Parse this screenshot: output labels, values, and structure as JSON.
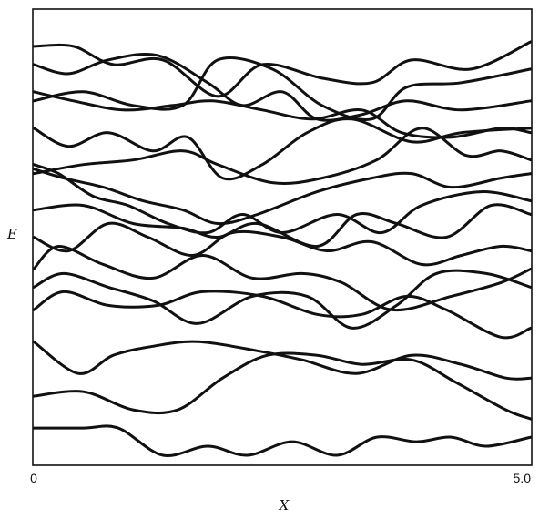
{
  "chart_data": {
    "type": "line",
    "title": "",
    "xlabel": "X",
    "ylabel": "E",
    "xlim": [
      0,
      5.0
    ],
    "ylim": [
      0,
      1
    ],
    "x_ticks": [
      {
        "value": 0,
        "label": "0"
      },
      {
        "value": 5.0,
        "label": "5.0"
      }
    ],
    "grid": false,
    "legend": "none",
    "line_color": "#111111",
    "series": [
      {
        "x": [
          0,
          0.4,
          0.8,
          1.3,
          1.85,
          2.3,
          2.9,
          3.4,
          3.8,
          4.4,
          5.0
        ],
        "y": [
          0.92,
          0.92,
          0.88,
          0.89,
          0.81,
          0.88,
          0.85,
          0.84,
          0.89,
          0.87,
          0.93
        ]
      },
      {
        "x": [
          0,
          0.35,
          0.75,
          1.25,
          1.75,
          2.1,
          2.5,
          2.85,
          3.3,
          3.75,
          4.3,
          5.0
        ],
        "y": [
          0.88,
          0.86,
          0.89,
          0.9,
          0.84,
          0.79,
          0.82,
          0.76,
          0.77,
          0.8,
          0.78,
          0.8
        ]
      },
      {
        "x": [
          0,
          0.5,
          1.0,
          1.5,
          1.85,
          2.4,
          2.9,
          3.4,
          3.75,
          4.3,
          5.0
        ],
        "y": [
          0.8,
          0.82,
          0.79,
          0.79,
          0.89,
          0.87,
          0.79,
          0.76,
          0.83,
          0.84,
          0.87
        ]
      },
      {
        "x": [
          0,
          0.4,
          0.9,
          1.4,
          1.8,
          2.3,
          2.8,
          3.3,
          3.7,
          4.2,
          4.7,
          5.0
        ],
        "y": [
          0.82,
          0.8,
          0.78,
          0.79,
          0.8,
          0.78,
          0.76,
          0.78,
          0.73,
          0.72,
          0.74,
          0.73
        ]
      },
      {
        "x": [
          0,
          0.35,
          0.75,
          1.2,
          1.55,
          1.9,
          2.3,
          2.75,
          3.2,
          3.8,
          4.3,
          5.0
        ],
        "y": [
          0.74,
          0.7,
          0.73,
          0.69,
          0.72,
          0.63,
          0.66,
          0.73,
          0.76,
          0.71,
          0.73,
          0.74
        ]
      },
      {
        "x": [
          0,
          0.5,
          1.0,
          1.5,
          1.85,
          2.4,
          2.9,
          3.45,
          3.9,
          4.35,
          4.7,
          5.0
        ],
        "y": [
          0.64,
          0.66,
          0.67,
          0.69,
          0.66,
          0.62,
          0.63,
          0.67,
          0.74,
          0.68,
          0.69,
          0.67
        ]
      },
      {
        "x": [
          0,
          0.3,
          0.7,
          1.1,
          1.5,
          1.85,
          2.25,
          2.85,
          3.4,
          3.8,
          4.2,
          4.7,
          5.0
        ],
        "y": [
          0.65,
          0.63,
          0.61,
          0.58,
          0.56,
          0.53,
          0.55,
          0.6,
          0.63,
          0.64,
          0.61,
          0.63,
          0.64
        ]
      },
      {
        "x": [
          0,
          0.25,
          0.6,
          0.95,
          1.35,
          1.75,
          2.1,
          2.5,
          3.05,
          3.5,
          3.9,
          4.5,
          5.0
        ],
        "y": [
          0.66,
          0.64,
          0.59,
          0.57,
          0.53,
          0.51,
          0.55,
          0.51,
          0.55,
          0.51,
          0.57,
          0.6,
          0.58
        ]
      },
      {
        "x": [
          0,
          0.5,
          1.0,
          1.5,
          1.85,
          2.25,
          2.85,
          3.25,
          3.65,
          4.15,
          4.6,
          5.0
        ],
        "y": [
          0.56,
          0.57,
          0.53,
          0.52,
          0.5,
          0.53,
          0.48,
          0.55,
          0.53,
          0.5,
          0.57,
          0.55
        ]
      },
      {
        "x": [
          0,
          0.35,
          0.75,
          1.15,
          1.6,
          2.0,
          2.5,
          2.95,
          3.4,
          3.9,
          4.3,
          4.7,
          5.0
        ],
        "y": [
          0.5,
          0.47,
          0.53,
          0.5,
          0.46,
          0.51,
          0.5,
          0.47,
          0.49,
          0.44,
          0.46,
          0.48,
          0.47
        ]
      },
      {
        "x": [
          0,
          0.25,
          0.7,
          1.2,
          1.7,
          2.2,
          2.7,
          3.1,
          3.6,
          4.2,
          4.7,
          5.0
        ],
        "y": [
          0.43,
          0.48,
          0.44,
          0.41,
          0.46,
          0.41,
          0.42,
          0.4,
          0.34,
          0.37,
          0.4,
          0.43
        ]
      },
      {
        "x": [
          0,
          0.3,
          0.75,
          1.2,
          1.65,
          2.2,
          2.75,
          3.2,
          3.65,
          4.05,
          4.55,
          5.0
        ],
        "y": [
          0.39,
          0.42,
          0.39,
          0.36,
          0.31,
          0.37,
          0.37,
          0.3,
          0.35,
          0.42,
          0.42,
          0.39
        ]
      },
      {
        "x": [
          0,
          0.3,
          0.75,
          1.25,
          1.7,
          2.3,
          2.85,
          3.3,
          3.75,
          4.15,
          4.7,
          5.0
        ],
        "y": [
          0.34,
          0.38,
          0.35,
          0.35,
          0.38,
          0.37,
          0.33,
          0.33,
          0.37,
          0.34,
          0.28,
          0.3
        ]
      },
      {
        "x": [
          0,
          0.45,
          0.8,
          1.2,
          1.65,
          2.25,
          2.7,
          3.25,
          3.8,
          4.3,
          4.75,
          5.0
        ],
        "y": [
          0.27,
          0.2,
          0.24,
          0.26,
          0.27,
          0.25,
          0.23,
          0.2,
          0.24,
          0.22,
          0.19,
          0.19
        ]
      },
      {
        "x": [
          0,
          0.5,
          1.0,
          1.45,
          1.9,
          2.35,
          2.85,
          3.3,
          3.8,
          4.25,
          4.75,
          5.0
        ],
        "y": [
          0.15,
          0.16,
          0.12,
          0.12,
          0.19,
          0.24,
          0.24,
          0.22,
          0.23,
          0.18,
          0.12,
          0.1
        ]
      },
      {
        "x": [
          0,
          0.5,
          0.85,
          1.3,
          1.75,
          2.15,
          2.6,
          3.05,
          3.45,
          3.85,
          4.2,
          4.55,
          5.0
        ],
        "y": [
          0.08,
          0.08,
          0.08,
          0.02,
          0.04,
          0.02,
          0.05,
          0.02,
          0.06,
          0.05,
          0.06,
          0.04,
          0.06
        ]
      }
    ]
  }
}
